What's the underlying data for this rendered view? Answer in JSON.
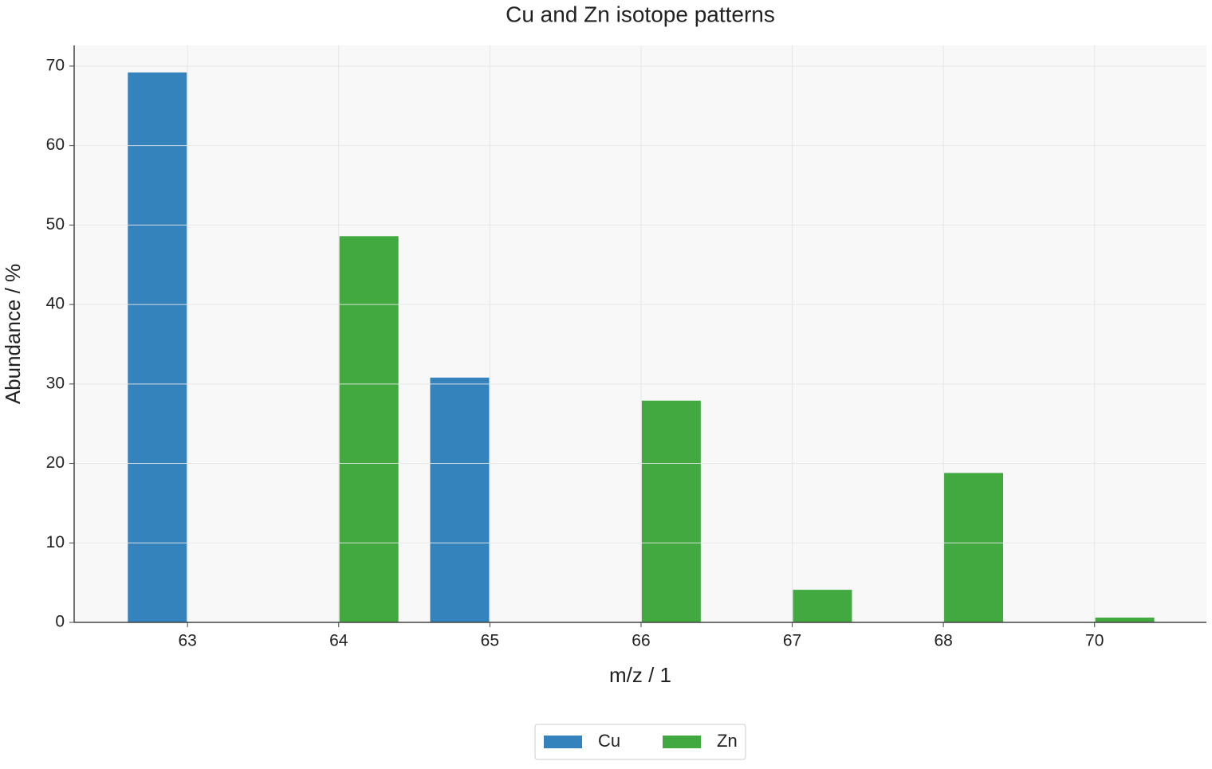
{
  "chart_data": {
    "type": "bar",
    "title": "Cu and Zn isotope patterns",
    "x_label": "m/z / 1",
    "y_label": "Abundance / %",
    "categories": [
      "63",
      "64",
      "65",
      "66",
      "67",
      "68",
      "70"
    ],
    "series": [
      {
        "name": "Cu",
        "color": "#3583bc",
        "values": [
          69.2,
          null,
          30.8,
          null,
          null,
          null,
          null
        ]
      },
      {
        "name": "Zn",
        "color": "#42a941",
        "values": [
          null,
          48.6,
          null,
          27.9,
          4.1,
          18.8,
          0.6
        ]
      }
    ],
    "ylim": [
      0,
      72.6
    ],
    "yticks": [
      0,
      10,
      20,
      30,
      40,
      50,
      60,
      70
    ],
    "grid": true,
    "legend": "bottom"
  }
}
